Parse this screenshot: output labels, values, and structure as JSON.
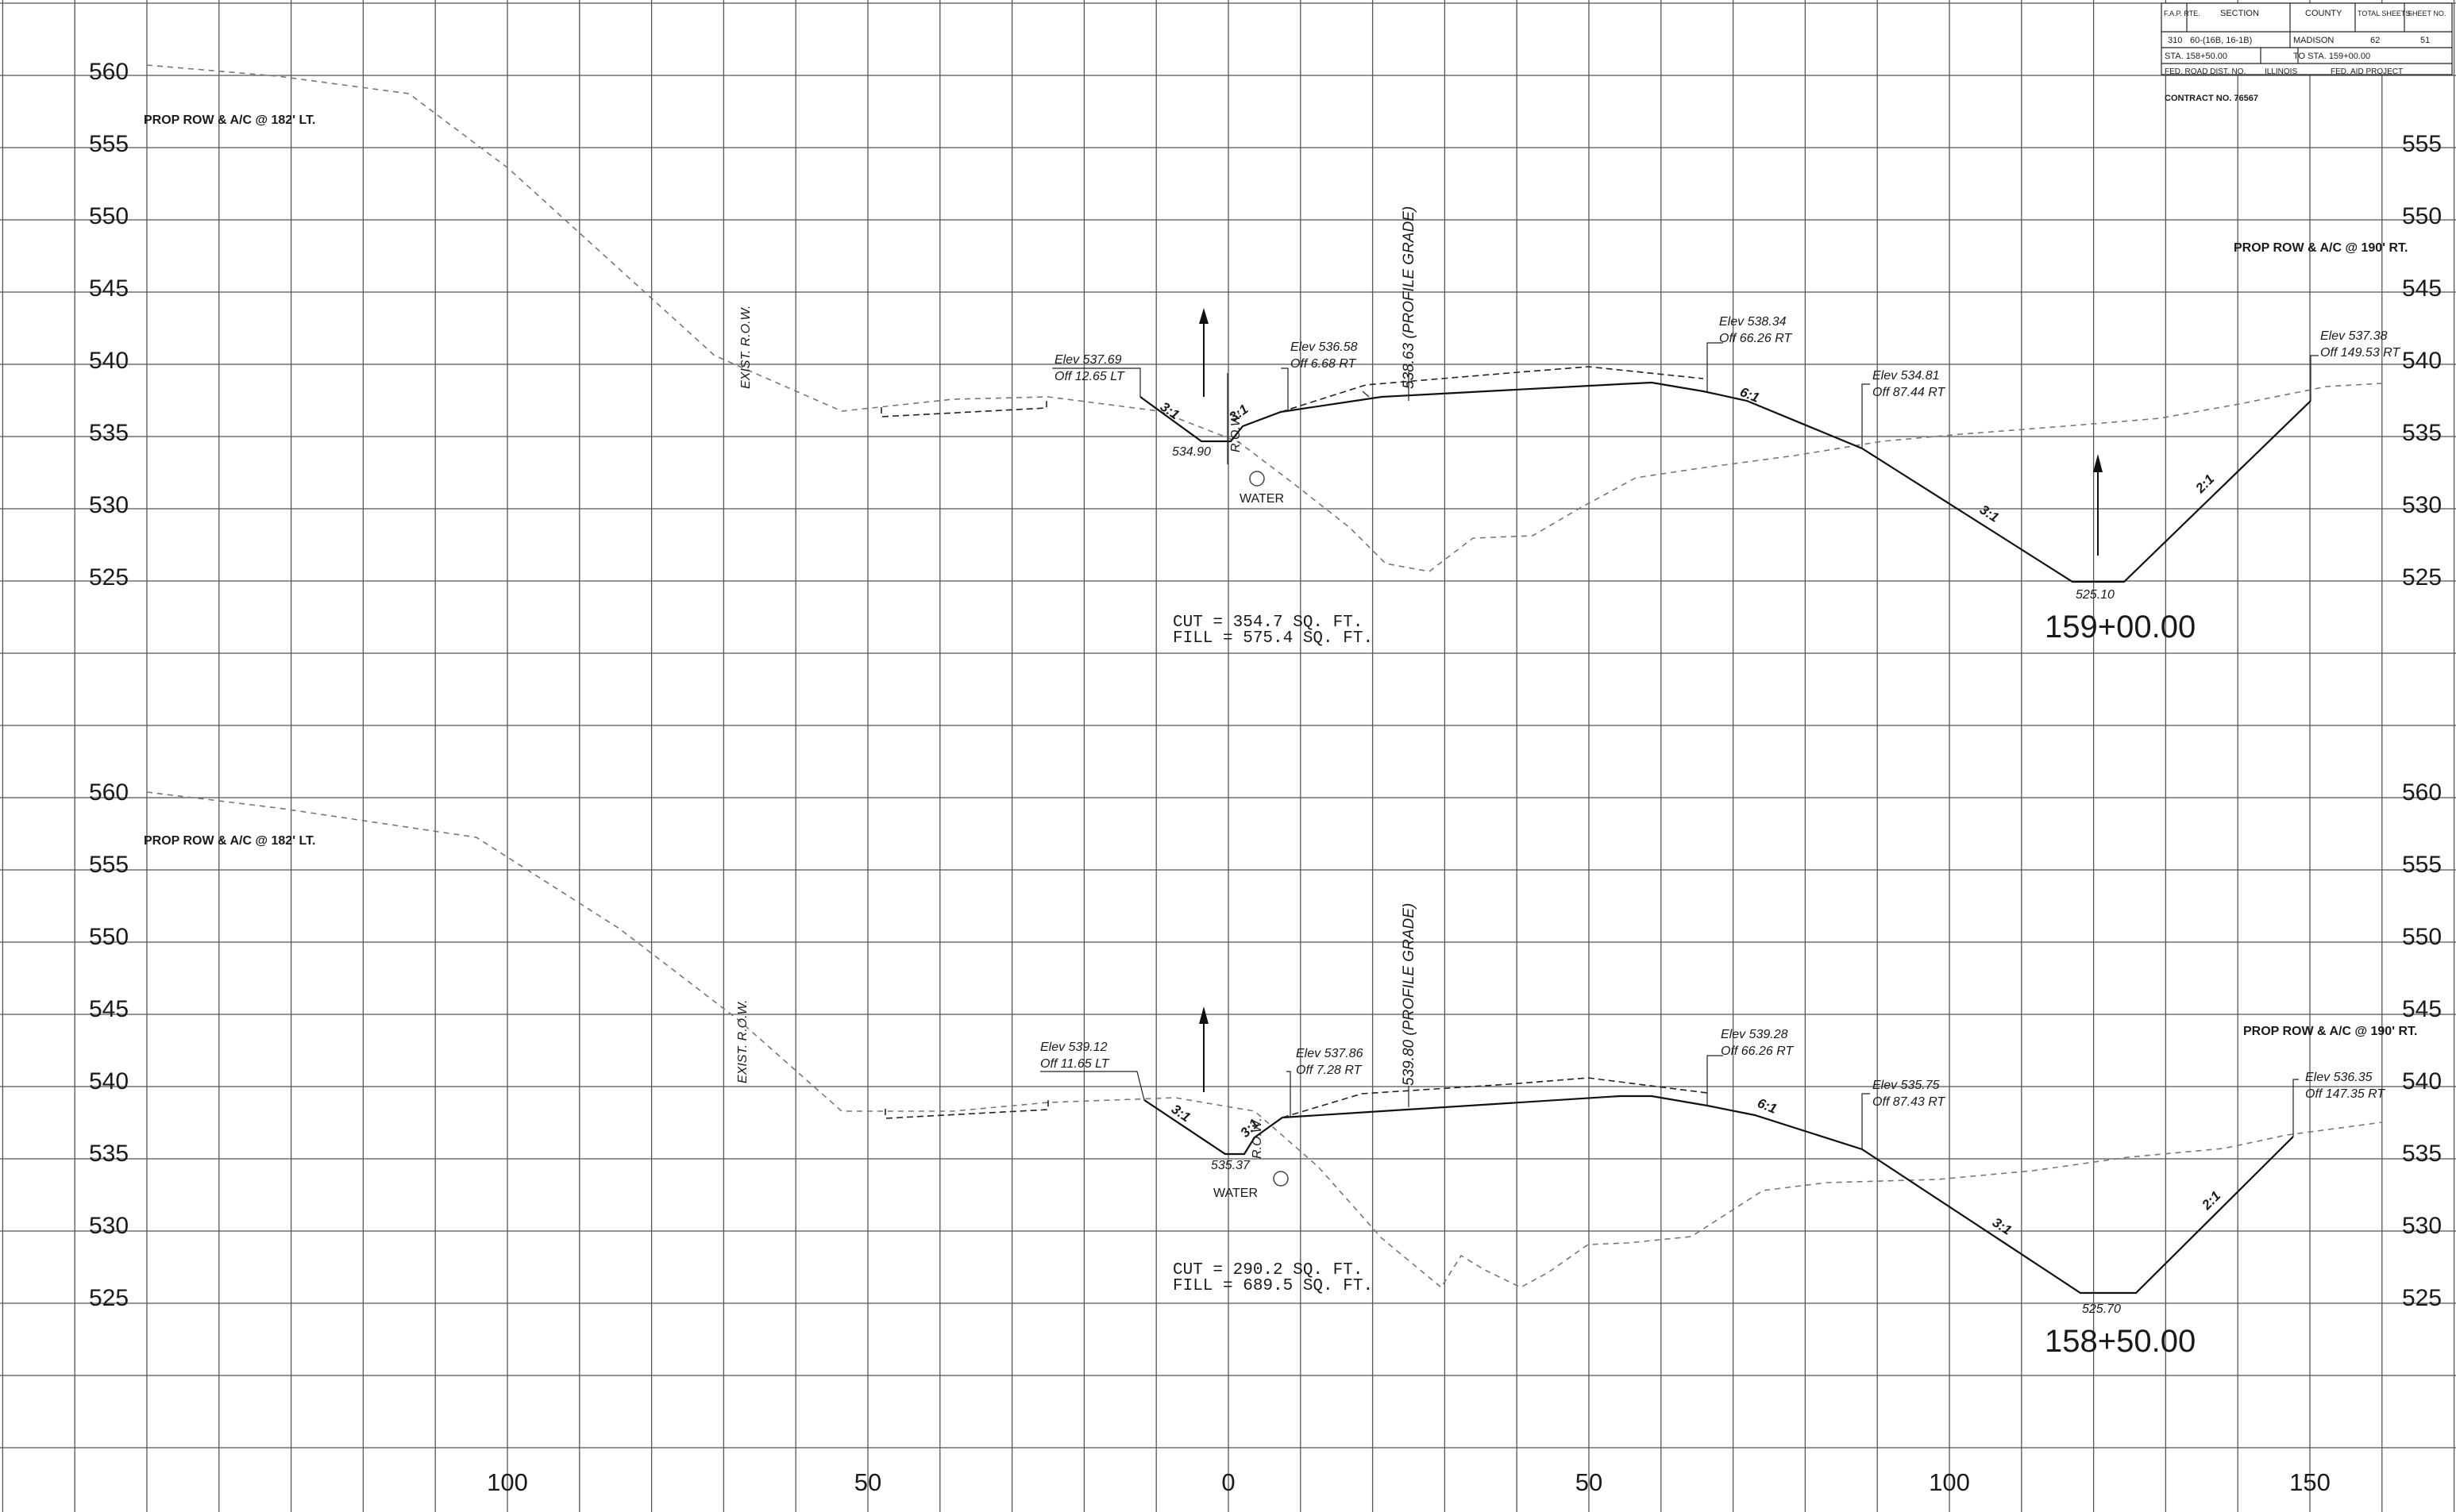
{
  "title_block": {
    "fap_rte_label": "F.A.P. RTE.",
    "section_label": "SECTION",
    "county_label": "COUNTY",
    "total_sheets_label": "TOTAL SHEETS",
    "sheet_no_label": "SHEET NO.",
    "fap_rte": "310",
    "section": "60-(16B, 16-1B)",
    "county": "MADISON",
    "total_sheets": "62",
    "sheet_no": "51",
    "sta_from": "STA. 158+50.00",
    "sta_to": "TO STA. 159+00.00",
    "fed_road_dist": "FED. ROAD DIST. NO.",
    "state": "ILLINOIS",
    "fed_aid_project": "FED. AID PROJECT",
    "contract": "CONTRACT NO. 76567"
  },
  "x_axis": {
    "ticks": [
      "100",
      "50",
      "0",
      "50",
      "100",
      "150"
    ],
    "tick_offsets": [
      -100,
      -50,
      0,
      50,
      100,
      150
    ]
  },
  "sections": [
    {
      "station": "159+00.00",
      "elevation_ticks": [
        "560",
        "555",
        "550",
        "545",
        "540",
        "535",
        "530",
        "525"
      ],
      "elevation_ticks_right": [
        "555",
        "550",
        "545",
        "540",
        "535",
        "530",
        "525"
      ],
      "prop_row_left": "PROP ROW & A/C @ 182' LT.",
      "prop_row_right": "PROP ROW & A/C @ 190' RT.",
      "exist_row": "EXIST. R.O.W.",
      "row_label": "R.O.W.",
      "profile_grade": "538.63 (PROFILE GRADE)",
      "water": "WATER",
      "cut": "CUT = 354.7 SQ. FT.",
      "fill": "FILL = 575.4 SQ. FT.",
      "ditch_left_elev": "534.90",
      "ditch_right_elev": "525.10",
      "callouts": [
        {
          "elev": "Elev 537.69",
          "off": "Off 12.65 LT"
        },
        {
          "elev": "Elev 536.58",
          "off": "Off 6.68 RT"
        },
        {
          "elev": "Elev 538.34",
          "off": "Off 66.26 RT"
        },
        {
          "elev": "Elev 534.81",
          "off": "Off 87.44 RT"
        },
        {
          "elev": "Elev 537.38",
          "off": "Off 149.53 RT"
        }
      ],
      "slopes": [
        "3:1",
        "3:1",
        "6:1",
        "3:1",
        "2:1"
      ]
    },
    {
      "station": "158+50.00",
      "elevation_ticks": [
        "560",
        "555",
        "550",
        "545",
        "540",
        "535",
        "530",
        "525"
      ],
      "elevation_ticks_right": [
        "560",
        "555",
        "550",
        "545",
        "540",
        "535",
        "530",
        "525"
      ],
      "prop_row_left": "PROP ROW & A/C @ 182' LT.",
      "prop_row_right": "PROP ROW & A/C @ 190' RT.",
      "exist_row": "EXIST. R.O.W.",
      "row_label": "R.O.W.",
      "profile_grade": "539.80 (PROFILE GRADE)",
      "water": "WATER",
      "cut": "CUT = 290.2 SQ. FT.",
      "fill": "FILL = 689.5 SQ. FT.",
      "ditch_left_elev": "535.37",
      "ditch_right_elev": "525.70",
      "callouts": [
        {
          "elev": "Elev 539.12",
          "off": "Off 11.65 LT"
        },
        {
          "elev": "Elev 537.86",
          "off": "Off 7.28 RT"
        },
        {
          "elev": "Elev 539.28",
          "off": "Off 66.26 RT"
        },
        {
          "elev": "Elev 535.75",
          "off": "Off 87.43 RT"
        },
        {
          "elev": "Elev 536.35",
          "off": "Off 147.35 RT"
        }
      ],
      "slopes": [
        "3:1",
        "3:1",
        "6:1",
        "3:1",
        "2:1"
      ]
    }
  ]
}
